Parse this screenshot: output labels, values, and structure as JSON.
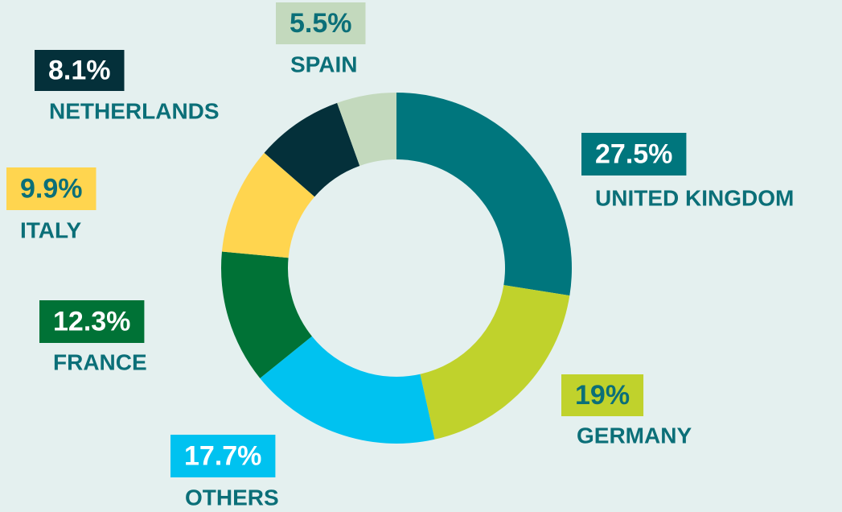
{
  "chart_data": {
    "type": "donut",
    "categories": [
      "UNITED KINGDOM",
      "GERMANY",
      "OTHERS",
      "FRANCE",
      "ITALY",
      "NETHERLANDS",
      "SPAIN"
    ],
    "values": [
      27.5,
      19,
      17.7,
      12.3,
      9.9,
      8.1,
      5.5
    ],
    "value_labels": [
      "27.5%",
      "19%",
      "17.7%",
      "12.3%",
      "9.9%",
      "8.1%",
      "5.5%"
    ],
    "colors": [
      "#00767d",
      "#c0d22c",
      "#00c2f0",
      "#007236",
      "#ffd54f",
      "#04303a",
      "#c3d9bd"
    ],
    "value_label_colors": [
      "#ffffff",
      "#0b6f78",
      "#ffffff",
      "#ffffff",
      "#0b6f78",
      "#ffffff",
      "#0b6f78"
    ]
  }
}
